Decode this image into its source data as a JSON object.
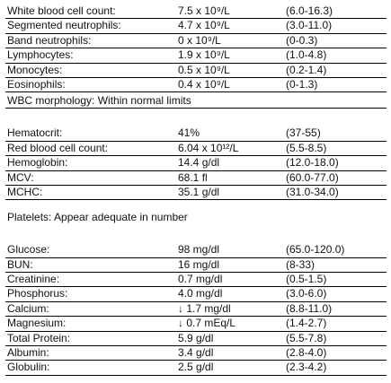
{
  "sections": [
    {
      "rows": [
        [
          "White blood cell count:",
          "7.5 x 10⁹/L",
          "(6.0-16.3)"
        ],
        [
          "Segmented neutrophils:",
          "4.7 x 10⁹/L",
          "(3.0-11.0)"
        ],
        [
          "Band neutrophils:",
          "0 x 10⁹/L",
          "(0-0.3)"
        ],
        [
          "Lymphocytes:",
          "1.9 x 10⁹/L",
          "(1.0-4.8)"
        ],
        [
          "Monocytes:",
          "0.5 x 10⁹/L",
          "(0.2-1.4)"
        ],
        [
          "Eosinophils:",
          "0.4 x 10⁹/L",
          "(0-1.3)"
        ]
      ],
      "note": "WBC morphology: Within normal limits"
    },
    {
      "rows": [
        [
          "Hematocrit:",
          "41%",
          "(37-55)"
        ],
        [
          "Red blood cell count:",
          "6.04 x 10¹²/L",
          "(5.5-8.5)"
        ],
        [
          "Hemoglobin:",
          "14.4 g/dl",
          "(12.0-18.0)"
        ],
        [
          "MCV:",
          "68.1 fl",
          "(60.0-77.0)"
        ],
        [
          "MCHC:",
          "35.1 g/dl",
          "(31.0-34.0)"
        ]
      ],
      "note": "Platelets: Appear adequate in number"
    },
    {
      "rows": [
        [
          "Glucose:",
          "98 mg/dl",
          "(65.0-120.0)"
        ],
        [
          "BUN:",
          "16 mg/dl",
          "(8-33)"
        ],
        [
          "Creatinine:",
          "0.7 mg/dl",
          "(0.5-1.5)"
        ],
        [
          "Phosphorus:",
          "4.0 mg/dl",
          "(3.0-6.0)"
        ],
        [
          "Calcium:",
          "↓ 1.7 mg/dl",
          "(8.8-11.0)"
        ],
        [
          "Magnesium:",
          "↓ 0.7 mEq/L",
          "(1.4-2.7)"
        ],
        [
          "Total Protein:",
          "5.9 g/dl",
          "(5.5-7.8)"
        ],
        [
          "Albumin:",
          "3.4 g/dl",
          "(2.8-4.0)"
        ],
        [
          "Globulin:",
          "2.5 g/dl",
          "(2.3-4.2)"
        ]
      ]
    }
  ]
}
